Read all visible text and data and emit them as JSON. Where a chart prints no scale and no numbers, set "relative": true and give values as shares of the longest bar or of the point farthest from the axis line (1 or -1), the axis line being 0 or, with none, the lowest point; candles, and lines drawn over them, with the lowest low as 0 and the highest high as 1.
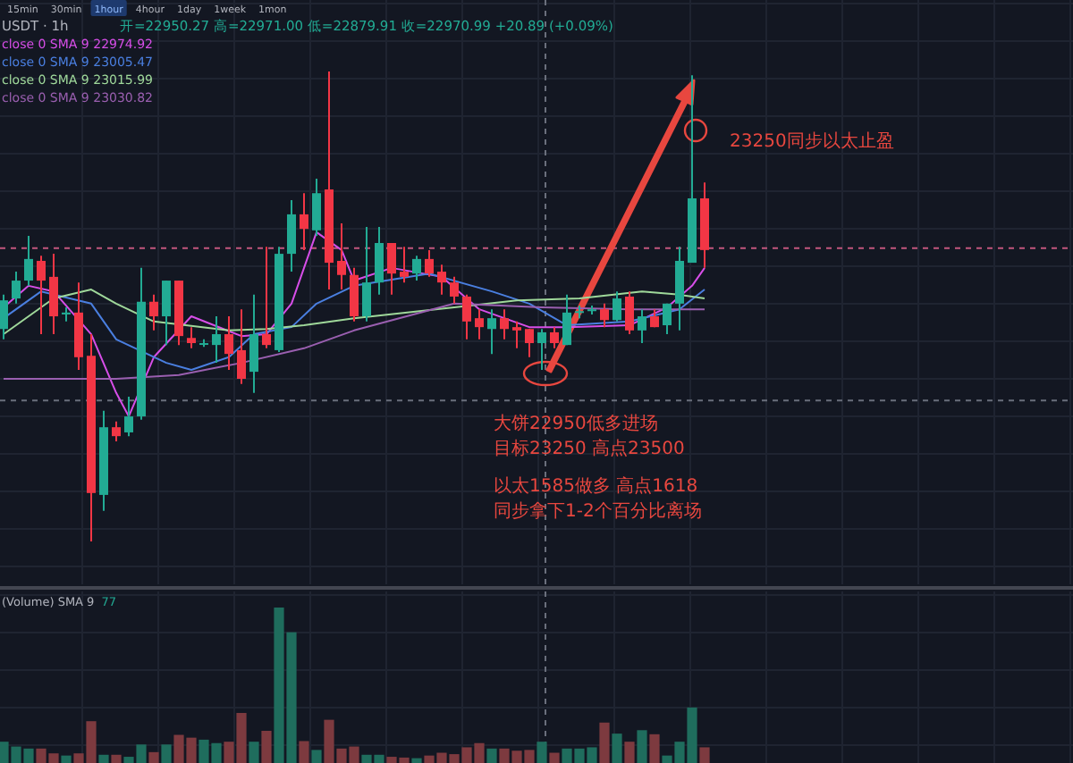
{
  "chart_data": [
    {
      "type": "candlestick",
      "title": "USDT · 1h",
      "subtitle": "开=22950.27 高=22971.00 低=22879.91 收=22970.99 +20.89 (+0.09%)",
      "relative": true,
      "grid": true,
      "legend": "top left",
      "categories": [
        null,
        null,
        null,
        null,
        null,
        null,
        null,
        null,
        null,
        null,
        null,
        null,
        null,
        null,
        null,
        null,
        null,
        null,
        null,
        null,
        null,
        null,
        null,
        null,
        null,
        null,
        null,
        null,
        null,
        null,
        null,
        null,
        null,
        null,
        null,
        null,
        null,
        null,
        null,
        null,
        null,
        null,
        null,
        null,
        null,
        null,
        null,
        null,
        null,
        null,
        null,
        null,
        null,
        null,
        null,
        null,
        null
      ],
      "ohlc": [
        [
          0.452,
          0.525,
          0.43,
          0.513
        ],
        [
          0.517,
          0.574,
          0.506,
          0.555
        ],
        [
          0.555,
          0.65,
          0.544,
          0.601
        ],
        [
          0.597,
          0.608,
          0.441,
          0.555
        ],
        [
          0.563,
          0.612,
          0.441,
          0.479
        ],
        [
          0.483,
          0.498,
          0.468,
          0.487
        ],
        [
          0.487,
          0.551,
          0.365,
          0.392
        ],
        [
          0.395,
          0.441,
          0,
          0.103
        ],
        [
          0.099,
          0.278,
          0.065,
          0.243
        ],
        [
          0.243,
          0.255,
          0.213,
          0.224
        ],
        [
          0.232,
          0.308,
          0.224,
          0.266
        ],
        [
          0.266,
          0.582,
          0.259,
          0.51
        ],
        [
          0.51,
          0.525,
          0.449,
          0.479
        ],
        [
          0.479,
          0.555,
          0.418,
          0.555
        ],
        [
          0.555,
          0.555,
          0.418,
          0.437
        ],
        [
          0.433,
          0.456,
          0.411,
          0.422
        ],
        [
          0.42,
          0.43,
          0.414,
          0.422
        ],
        [
          0.418,
          0.479,
          0.38,
          0.441
        ],
        [
          0.441,
          0.479,
          0.365,
          0.399
        ],
        [
          0.407,
          0.494,
          0.335,
          0.346
        ],
        [
          0.361,
          0.525,
          0.316,
          0.441
        ],
        [
          0.441,
          0.627,
          0.411,
          0.418
        ],
        [
          0.407,
          0.627,
          0.403,
          0.612
        ],
        [
          0.612,
          0.726,
          0.574,
          0.696
        ],
        [
          0.696,
          0.741,
          0.62,
          0.665
        ],
        [
          0.662,
          0.772,
          0.65,
          0.741
        ],
        [
          0.749,
          1,
          0.536,
          0.593
        ],
        [
          0.597,
          0.677,
          0.536,
          0.567
        ],
        [
          0.567,
          0.582,
          0.468,
          0.479
        ],
        [
          0.479,
          0.669,
          0.468,
          0.551
        ],
        [
          0.551,
          0.669,
          0.525,
          0.635
        ],
        [
          0.635,
          0.635,
          0.525,
          0.57
        ],
        [
          0.574,
          0.627,
          0.551,
          0.563
        ],
        [
          0.57,
          0.608,
          0.555,
          0.601
        ],
        [
          0.601,
          0.62,
          0.563,
          0.57
        ],
        [
          0.574,
          0.589,
          0.525,
          0.551
        ],
        [
          0.551,
          0.563,
          0.506,
          0.521
        ],
        [
          0.521,
          0.525,
          0.43,
          0.468
        ],
        [
          0.475,
          0.494,
          0.43,
          0.456
        ],
        [
          0.452,
          0.494,
          0.399,
          0.475
        ],
        [
          0.475,
          0.494,
          0.43,
          0.452
        ],
        [
          0.456,
          0.468,
          0.411,
          0.449
        ],
        [
          0.452,
          0.452,
          0.392,
          0.422
        ],
        [
          0.422,
          0.452,
          0.365,
          0.445
        ],
        [
          0.445,
          0.456,
          0.411,
          0.422
        ],
        [
          0.418,
          0.525,
          0.418,
          0.487
        ],
        [
          0.487,
          0.502,
          0.475,
          0.49
        ],
        [
          0.49,
          0.502,
          0.483,
          0.494
        ],
        [
          0.494,
          0.506,
          0.456,
          0.471
        ],
        [
          0.471,
          0.532,
          0.468,
          0.517
        ],
        [
          0.521,
          0.532,
          0.441,
          0.449
        ],
        [
          0.449,
          0.494,
          0.422,
          0.479
        ],
        [
          0.479,
          0.494,
          0.456,
          0.456
        ],
        [
          0.46,
          0.506,
          0.441,
          0.506
        ],
        [
          0.506,
          0.627,
          0.449,
          0.597
        ],
        [
          0.593,
          0.992,
          0.593,
          0.73
        ],
        [
          0.73,
          0.764,
          0.582,
          0.62
        ]
      ],
      "colors": [
        "#22ab94",
        "#22ab94",
        "#22ab94",
        "#f23645",
        "#f23645",
        "#22ab94",
        "#f23645",
        "#f23645",
        "#22ab94",
        "#f23645",
        "#22ab94",
        "#22ab94",
        "#f23645",
        "#22ab94",
        "#f23645",
        "#f23645",
        "#22ab94",
        "#22ab94",
        "#f23645",
        "#f23645",
        "#22ab94",
        "#f23645",
        "#22ab94",
        "#22ab94",
        "#f23645",
        "#22ab94",
        "#f23645",
        "#f23645",
        "#f23645",
        "#22ab94",
        "#22ab94",
        "#f23645",
        "#f23645",
        "#22ab94",
        "#f23645",
        "#f23645",
        "#f23645",
        "#f23645",
        "#f23645",
        "#22ab94",
        "#f23645",
        "#f23645",
        "#f23645",
        "#22ab94",
        "#f23645",
        "#22ab94",
        "#22ab94",
        "#22ab94",
        "#f23645",
        "#22ab94",
        "#f23645",
        "#22ab94",
        "#f23645",
        "#22ab94",
        "#22ab94",
        "#22ab94",
        "#f23645"
      ],
      "series": [
        {
          "name": "close 0 SMA 9 22974.92",
          "type": "line",
          "color": "#d74ee8",
          "values": [
            0.498,
            null,
            0.544,
            null,
            0.532,
            null,
            null,
            0.441,
            null,
            0.316,
            0.266,
            null,
            0.392,
            null,
            null,
            0.479,
            null,
            null,
            null,
            0.437,
            null,
            0.441,
            null,
            0.506,
            null,
            0.658,
            null,
            0.62,
            0.555,
            null,
            null,
            0.582,
            null,
            null,
            null,
            0.563,
            null,
            null,
            0.494,
            null,
            null,
            null,
            0.456,
            null,
            null,
            0.456,
            null,
            null,
            null,
            null,
            0.46,
            null,
            null,
            0.498,
            null,
            0.544,
            0.582
          ]
        },
        {
          "name": "close 0 SMA 9 23005.47",
          "type": "line",
          "color": "#4a7fe0",
          "values": [
            0.475,
            null,
            null,
            0.532,
            null,
            null,
            null,
            0.506,
            null,
            0.43,
            null,
            null,
            null,
            0.38,
            null,
            0.365,
            null,
            null,
            0.392,
            null,
            0.441,
            null,
            null,
            0.456,
            null,
            0.506,
            null,
            null,
            0.544,
            null,
            null,
            null,
            null,
            null,
            0.57,
            null,
            null,
            null,
            null,
            0.532,
            null,
            null,
            0.506,
            null,
            null,
            0.46,
            null,
            null,
            null,
            null,
            0.468,
            null,
            null,
            null,
            0.494,
            null,
            0.536
          ]
        },
        {
          "name": "close 0 SMA 9 23015.99",
          "type": "line",
          "color": "#9fd89a",
          "values": [
            0.441,
            null,
            null,
            null,
            0.517,
            null,
            null,
            0.536,
            null,
            0.506,
            null,
            null,
            0.468,
            null,
            null,
            null,
            null,
            null,
            0.449,
            null,
            null,
            0.452,
            null,
            null,
            0.46,
            null,
            null,
            null,
            0.475,
            null,
            null,
            null,
            null,
            null,
            null,
            null,
            0.498,
            null,
            null,
            null,
            null,
            0.513,
            null,
            null,
            null,
            null,
            0.517,
            null,
            null,
            null,
            null,
            0.532,
            null,
            null,
            0.525,
            null,
            0.517
          ]
        },
        {
          "name": "close 0 SMA 9 23030.82",
          "type": "line",
          "color": "#9a5fb0",
          "values": [
            0.346,
            null,
            null,
            null,
            null,
            null,
            null,
            null,
            null,
            0.346,
            null,
            null,
            null,
            null,
            0.354,
            null,
            null,
            null,
            null,
            0.38,
            null,
            null,
            null,
            null,
            0.411,
            null,
            null,
            null,
            0.449,
            null,
            null,
            null,
            null,
            null,
            null,
            null,
            0.506,
            null,
            null,
            null,
            null,
            null,
            null,
            0.498,
            null,
            null,
            null,
            null,
            null,
            null,
            0.494,
            null,
            null,
            null,
            null,
            null,
            0.494
          ]
        }
      ],
      "ref_lines": [
        {
          "axis": "y",
          "value": 0.624,
          "color": "#c2567e",
          "line_style": "dashed"
        },
        {
          "axis": "y",
          "value": 0.3,
          "color": "#6a6f7c",
          "line_style": "dashed"
        }
      ],
      "annotations": [
        "15min",
        "30min",
        "1hour",
        "4hour",
        "1day",
        "1week",
        "1mon",
        "23250同步以太止盈",
        "大饼22950低多进场",
        "目标23250 高点23500",
        "以太1585做多 高点1618",
        "同步拿下1-2个百分比离场"
      ]
    },
    {
      "type": "bar",
      "title": "(Volume) SMA 9",
      "subtitle": "77",
      "relative": true,
      "grid": true,
      "categories": [
        null,
        null,
        null,
        null,
        null,
        null,
        null,
        null,
        null,
        null,
        null,
        null,
        null,
        null,
        null,
        null,
        null,
        null,
        null,
        null,
        null,
        null,
        null,
        null,
        null,
        null,
        null,
        null,
        null,
        null,
        null,
        null,
        null,
        null,
        null,
        null,
        null,
        null,
        null,
        null,
        null,
        null,
        null,
        null,
        null,
        null,
        null,
        null,
        null,
        null,
        null,
        null,
        null,
        null,
        null,
        null,
        null
      ],
      "values": [
        0.137,
        0.106,
        0.093,
        0.093,
        0.062,
        0.048,
        0.062,
        0.269,
        0.053,
        0.053,
        0.04,
        0.119,
        0.07,
        0.119,
        0.181,
        0.163,
        0.15,
        0.128,
        0.137,
        0.322,
        0.137,
        0.207,
        1,
        0.841,
        0.141,
        0.084,
        0.278,
        0.093,
        0.106,
        0.053,
        0.053,
        0.04,
        0.035,
        0.031,
        0.048,
        0.066,
        0.057,
        0.101,
        0.128,
        0.093,
        0.093,
        0.079,
        0.084,
        0.137,
        0.066,
        0.093,
        0.093,
        0.101,
        0.26,
        0.189,
        0.137,
        0.211,
        0.185,
        0.048,
        0.137,
        0.357,
        0.101
      ],
      "colors": [
        "#1f6d5d",
        "#1f6d5d",
        "#1f6d5d",
        "#7d3a3f",
        "#7d3a3f",
        "#1f6d5d",
        "#7d3a3f",
        "#7d3a3f",
        "#1f6d5d",
        "#7d3a3f",
        "#1f6d5d",
        "#1f6d5d",
        "#7d3a3f",
        "#1f6d5d",
        "#7d3a3f",
        "#7d3a3f",
        "#1f6d5d",
        "#1f6d5d",
        "#7d3a3f",
        "#7d3a3f",
        "#1f6d5d",
        "#7d3a3f",
        "#1f6d5d",
        "#1f6d5d",
        "#7d3a3f",
        "#1f6d5d",
        "#7d3a3f",
        "#7d3a3f",
        "#7d3a3f",
        "#1f6d5d",
        "#1f6d5d",
        "#7d3a3f",
        "#7d3a3f",
        "#1f6d5d",
        "#7d3a3f",
        "#7d3a3f",
        "#7d3a3f",
        "#7d3a3f",
        "#7d3a3f",
        "#1f6d5d",
        "#7d3a3f",
        "#7d3a3f",
        "#7d3a3f",
        "#1f6d5d",
        "#7d3a3f",
        "#1f6d5d",
        "#1f6d5d",
        "#1f6d5d",
        "#7d3a3f",
        "#1f6d5d",
        "#7d3a3f",
        "#1f6d5d",
        "#7d3a3f",
        "#1f6d5d",
        "#1f6d5d",
        "#1f6d5d",
        "#7d3a3f"
      ]
    }
  ]
}
